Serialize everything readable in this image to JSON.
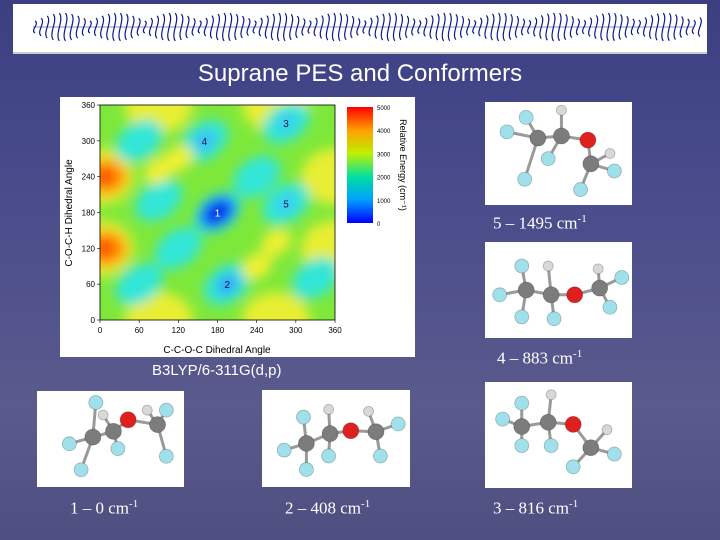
{
  "title": "Suprane PES and Conformers",
  "method": "B3LYP/6-311G(d,p)",
  "pes": {
    "xlabel": "C-C-O-C Dihedral Angle",
    "ylabel": "C-O-C-H Dihedral Angle",
    "x_ticks": [
      "0",
      "60",
      "120",
      "180",
      "240",
      "300",
      "360"
    ],
    "y_ticks": [
      "0",
      "60",
      "120",
      "180",
      "240",
      "300",
      "360"
    ],
    "colorbar_label": "Relative Energy (cm⁻¹)",
    "colorbar_ticks": [
      "0",
      "1000",
      "2000",
      "3000",
      "4000",
      "5000"
    ],
    "markers": [
      {
        "label": "1",
        "x": 180,
        "y": 180
      },
      {
        "label": "2",
        "x": 195,
        "y": 60
      },
      {
        "label": "3",
        "x": 285,
        "y": 330
      },
      {
        "label": "4",
        "x": 160,
        "y": 300
      },
      {
        "label": "5",
        "x": 285,
        "y": 195
      }
    ]
  },
  "conformers": [
    {
      "id": "5",
      "energy": "5 – 1495 cm",
      "unit_sup": "-1"
    },
    {
      "id": "4",
      "energy": "4 – 883 cm",
      "unit_sup": "-1"
    },
    {
      "id": "1",
      "energy": "1 – 0 cm",
      "unit_sup": "-1"
    },
    {
      "id": "2",
      "energy": "2 – 408 cm",
      "unit_sup": "-1"
    },
    {
      "id": "3",
      "energy": "3 – 816 cm",
      "unit_sup": "-1"
    }
  ],
  "colors": {
    "background": "#45478a",
    "accent": "#ffffff",
    "oxygen": "#e0201f",
    "carbon": "#7c7c7c",
    "fluorine": "#9fe0ea",
    "hydrogen": "#d8d8d8"
  }
}
